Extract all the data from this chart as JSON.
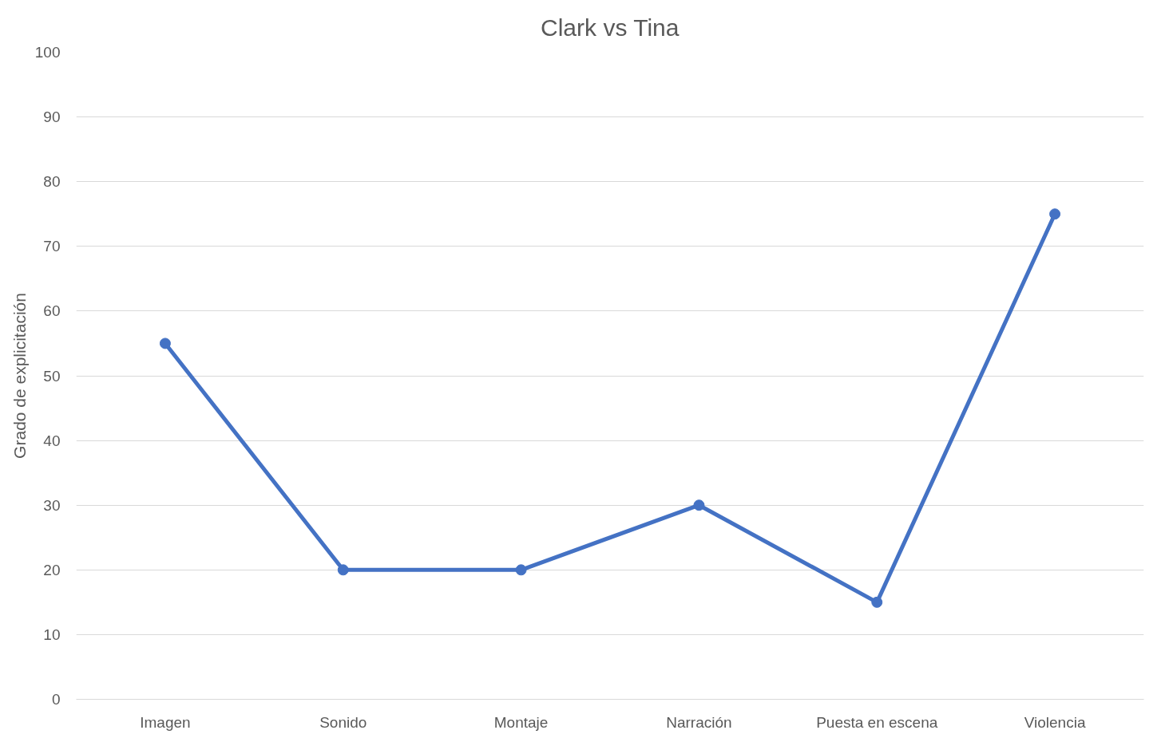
{
  "chart_data": {
    "type": "line",
    "title": "Clark vs Tina",
    "ylabel": "Grado de explicitación",
    "categories": [
      "Imagen",
      "Sonido",
      "Montaje",
      "Narración",
      "Puesta en escena",
      "Violencia"
    ],
    "series": [
      {
        "color": "#4472c4",
        "values": [
          55,
          20,
          20,
          30,
          15,
          75
        ]
      }
    ],
    "ylim": [
      0,
      100
    ],
    "yticks": [
      0,
      10,
      20,
      30,
      40,
      50,
      60,
      70,
      80,
      90,
      100
    ],
    "grid": "y",
    "marker": "circle",
    "line_style": "solid"
  }
}
